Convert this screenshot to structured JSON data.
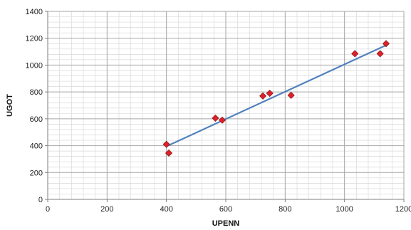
{
  "chart_data": {
    "type": "scatter",
    "xlabel": "UPENN",
    "ylabel": "UGOT",
    "xlim": [
      0,
      1200
    ],
    "ylim": [
      0,
      1400
    ],
    "x_ticks": [
      "0",
      "200",
      "400",
      "600",
      "800",
      "1000",
      "1200"
    ],
    "y_ticks": [
      "0",
      "200",
      "400",
      "600",
      "800",
      "1000",
      "1200",
      "1400"
    ],
    "grid": true,
    "legend": "none",
    "series": [
      {
        "points": [
          {
            "x": 400,
            "y": 410
          },
          {
            "x": 408,
            "y": 345
          },
          {
            "x": 565,
            "y": 605
          },
          {
            "x": 588,
            "y": 590
          },
          {
            "x": 725,
            "y": 770
          },
          {
            "x": 748,
            "y": 790
          },
          {
            "x": 820,
            "y": 775
          },
          {
            "x": 1035,
            "y": 1085
          },
          {
            "x": 1120,
            "y": 1085
          },
          {
            "x": 1140,
            "y": 1160
          }
        ],
        "marker_color": "#e0202a",
        "marker_edge_color": "#8b1a1a"
      }
    ],
    "trendline": {
      "x": [
        400,
        1140
      ],
      "y": [
        395,
        1148
      ],
      "color": "#4f81bd"
    },
    "colors": {
      "grid_major": "#a6a6a6",
      "grid_minor": "#d9d9d9",
      "axis": "#7f7f7f"
    }
  }
}
